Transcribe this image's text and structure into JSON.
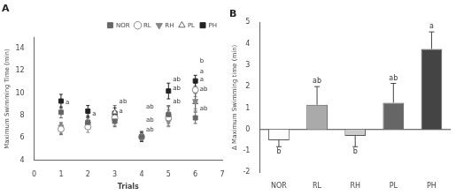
{
  "chart_data": [
    {
      "type": "scatter",
      "title": "A",
      "xlabel": "Trials",
      "ylabel": "Maximum Swimming Time (min)",
      "xlim": [
        0,
        7
      ],
      "ylim": [
        4,
        15
      ],
      "xticks": [
        0,
        1,
        2,
        3,
        4,
        5,
        6,
        7
      ],
      "yticks": [
        4,
        6,
        8,
        10,
        12,
        14
      ],
      "grid": false,
      "legend": "upper right",
      "series": [
        {
          "name": "NOR",
          "color": "#666666",
          "marker": "square",
          "x": [
            1,
            2,
            3,
            4,
            5,
            6
          ],
          "values": [
            8.3,
            7.4,
            7.5,
            6.1,
            8.1,
            7.8
          ],
          "yerr": [
            0.5,
            0.4,
            0.5,
            0.3,
            0.8,
            0.5
          ]
        },
        {
          "name": "RL",
          "color": "#888888",
          "marker": "open_circle",
          "x": [
            1,
            2,
            3,
            4,
            5,
            6
          ],
          "values": [
            6.8,
            7.0,
            7.8,
            6.1,
            7.8,
            10.3
          ],
          "yerr": [
            0.4,
            0.5,
            0.5,
            0.4,
            0.7,
            0.6
          ]
        },
        {
          "name": "RH",
          "color": "#888888",
          "marker": "triangle_down",
          "x": [
            1,
            2,
            3,
            4,
            5,
            6
          ],
          "values": [
            7.0,
            7.2,
            7.5,
            6.0,
            7.5,
            9.3
          ],
          "yerr": [
            0.4,
            0.4,
            0.4,
            0.3,
            0.5,
            0.7
          ]
        },
        {
          "name": "PL",
          "color": "#666666",
          "marker": "open_triangle",
          "x": [
            1,
            2,
            3,
            4,
            5,
            6
          ],
          "values": [
            6.8,
            7.5,
            8.3,
            6.2,
            8.2,
            9.2
          ],
          "yerr": [
            0.5,
            0.5,
            0.6,
            0.4,
            0.6,
            0.8
          ]
        },
        {
          "name": "PH",
          "color": "#222222",
          "marker": "square",
          "x": [
            1,
            2,
            3,
            4,
            5,
            6
          ],
          "values": [
            9.3,
            8.4,
            8.2,
            6.1,
            10.2,
            11.1
          ],
          "yerr": [
            0.6,
            0.5,
            0.5,
            0.4,
            0.7,
            0.5
          ]
        }
      ],
      "annotations": [
        {
          "x": 1,
          "series": "NOR",
          "text": "a"
        },
        {
          "x": 2,
          "series": "NOR",
          "text": "a"
        },
        {
          "x": 3,
          "series": "NOR",
          "text": "a"
        },
        {
          "x": 3,
          "series": "PL",
          "text": "ab"
        },
        {
          "x": 4,
          "series": "NOR",
          "text": "ab"
        },
        {
          "x": 4,
          "series": "PL",
          "text": "ab"
        },
        {
          "x": 4,
          "series": "PH",
          "text": "ab"
        },
        {
          "x": 5,
          "series": "NOR",
          "text": "ab"
        },
        {
          "x": 5,
          "series": "PL",
          "text": "ab"
        },
        {
          "x": 5,
          "series": "PH",
          "text": "ab"
        },
        {
          "x": 6,
          "series": "PH",
          "text": "a"
        },
        {
          "x": 6,
          "series": "RL",
          "text": "a"
        },
        {
          "x": 6,
          "series": "NOR",
          "text": "ab"
        },
        {
          "x": 6,
          "series": "PL",
          "text": "ab"
        },
        {
          "x": 6,
          "series": "RH",
          "text": "b"
        }
      ]
    },
    {
      "type": "bar",
      "title": "B",
      "ylabel": "Δ Maximum Swimming time (min)",
      "categories": [
        "NOR",
        "RL",
        "RH",
        "PL",
        "PH"
      ],
      "values": [
        -0.5,
        1.15,
        -0.3,
        1.25,
        3.75
      ],
      "yerr": [
        0.3,
        0.85,
        0.5,
        0.9,
        0.8
      ],
      "colors": [
        "white",
        "#aaaaaa",
        "#cccccc",
        "#666666",
        "#444444"
      ],
      "ylim": [
        -2,
        5
      ],
      "yticks": [
        -2,
        -1,
        0,
        1,
        2,
        3,
        4,
        5
      ],
      "grid": false,
      "annotations": [
        {
          "category": "NOR",
          "text": "b"
        },
        {
          "category": "RL",
          "text": "ab"
        },
        {
          "category": "RH",
          "text": "b"
        },
        {
          "category": "PL",
          "text": "ab"
        },
        {
          "category": "PH",
          "text": "a"
        }
      ]
    }
  ]
}
